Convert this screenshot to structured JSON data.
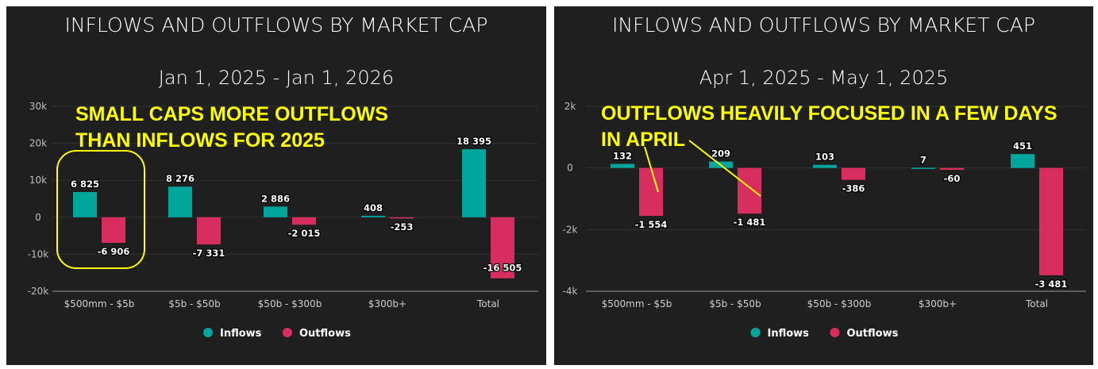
{
  "colors": {
    "inflows": "#00a59c",
    "outflows": "#d72e5f",
    "annotation": "#ffff00",
    "background": "#1f1f1f"
  },
  "chart_data": [
    {
      "type": "bar",
      "title": "INFLOWS AND OUTFLOWS BY MARKET CAP",
      "subtitle": "Jan 1, 2025 - Jan 1, 2026",
      "categories": [
        "$500mm - $5b",
        "$5b - $50b",
        "$50b - $300b",
        "$300b+",
        "Total"
      ],
      "series": [
        {
          "name": "Inflows",
          "values": [
            6825,
            8276,
            2886,
            408,
            18395
          ],
          "labels": [
            "6 825",
            "8 276",
            "2 886",
            "408",
            "18 395"
          ]
        },
        {
          "name": "Outflows",
          "values": [
            -6906,
            -7331,
            -2015,
            -253,
            -16505
          ],
          "labels": [
            "-6 906",
            "-7 331",
            "-2 015",
            "-253",
            "-16 505"
          ]
        }
      ],
      "ylim": [
        -20000,
        30000
      ],
      "yticks": [
        30000,
        20000,
        10000,
        0,
        -10000,
        -20000
      ],
      "ytick_labels": [
        "30k",
        "20k",
        "10k",
        "0",
        "-10k",
        "-20k"
      ],
      "grid": true,
      "legend": "bottom",
      "annotation": {
        "lines": [
          "SMALL CAPS MORE OUTFLOWS",
          "THAN INFLOWS FOR 2025"
        ],
        "highlight": "$500mm - $5b"
      }
    },
    {
      "type": "bar",
      "title": "INFLOWS AND OUTFLOWS BY MARKET CAP",
      "subtitle": "Apr 1, 2025 - May 1, 2025",
      "categories": [
        "$500mm - $5b",
        "$5b - $50b",
        "$50b - $300b",
        "$300b+",
        "Total"
      ],
      "series": [
        {
          "name": "Inflows",
          "values": [
            132,
            209,
            103,
            7,
            451
          ],
          "labels": [
            "132",
            "209",
            "103",
            "7",
            "451"
          ]
        },
        {
          "name": "Outflows",
          "values": [
            -1554,
            -1481,
            -386,
            -60,
            -3481
          ],
          "labels": [
            "-1 554",
            "-1 481",
            "-386",
            "-60",
            "-3 481"
          ]
        }
      ],
      "ylim": [
        -4000,
        2000
      ],
      "yticks": [
        2000,
        0,
        -2000,
        -4000
      ],
      "ytick_labels": [
        "2k",
        "0",
        "-2k",
        "-4k"
      ],
      "grid": true,
      "legend": "bottom",
      "annotation": {
        "lines": [
          "OUTFLOWS HEAVILY FOCUSED IN A FEW DAYS",
          "IN APRIL"
        ],
        "arrows_to": [
          "$500mm - $5b",
          "$5b - $50b"
        ]
      }
    }
  ]
}
